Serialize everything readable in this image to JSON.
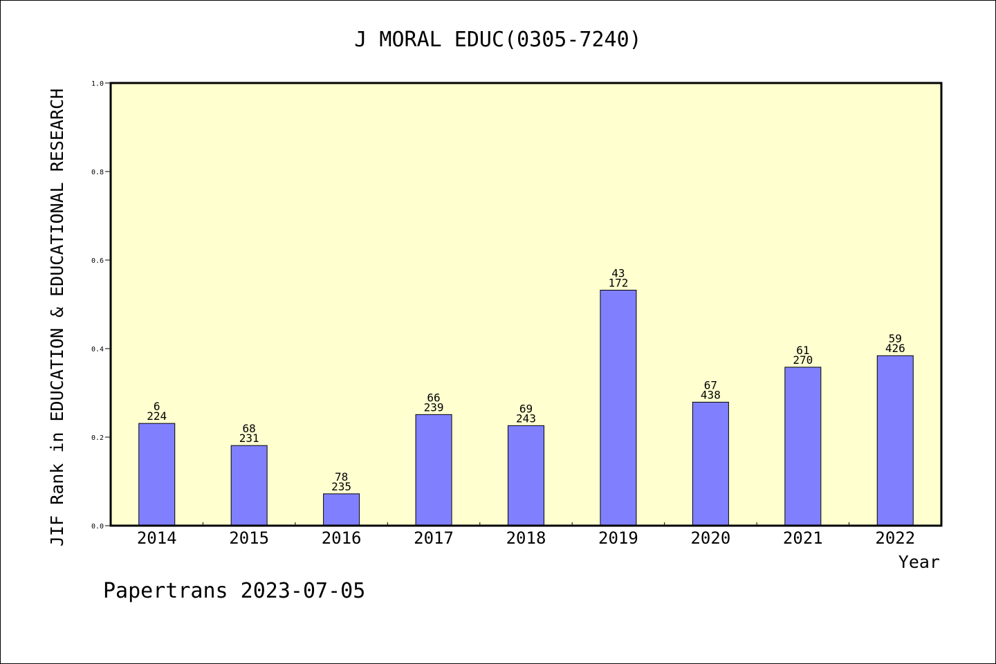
{
  "chart_data": {
    "type": "bar",
    "title": "J MORAL EDUC(0305-7240)",
    "xlabel": "Year",
    "ylabel": "JIF Rank in EDUCATION & EDUCATIONAL RESEARCH",
    "ylim": [
      0,
      1.0
    ],
    "yticks": [
      "0.0",
      "0.2",
      "0.4",
      "0.6",
      "0.8",
      "1.0"
    ],
    "categories": [
      "2014",
      "2015",
      "2016",
      "2017",
      "2018",
      "2019",
      "2020",
      "2021",
      "2022"
    ],
    "values": [
      0.231,
      0.181,
      0.072,
      0.251,
      0.226,
      0.532,
      0.279,
      0.358,
      0.384
    ],
    "ranks": [
      "6",
      "68",
      "78",
      "66",
      "69",
      "43",
      "67",
      "61",
      "59"
    ],
    "totals": [
      "224",
      "231",
      "235",
      "239",
      "243",
      "172",
      "438",
      "270",
      "426"
    ],
    "grid": false,
    "colors": {
      "plot_background": "#ffffd0",
      "bar_fill": "#8080ff",
      "bar_stroke": "#000000"
    }
  },
  "footer": "Papertrans 2023-07-05"
}
